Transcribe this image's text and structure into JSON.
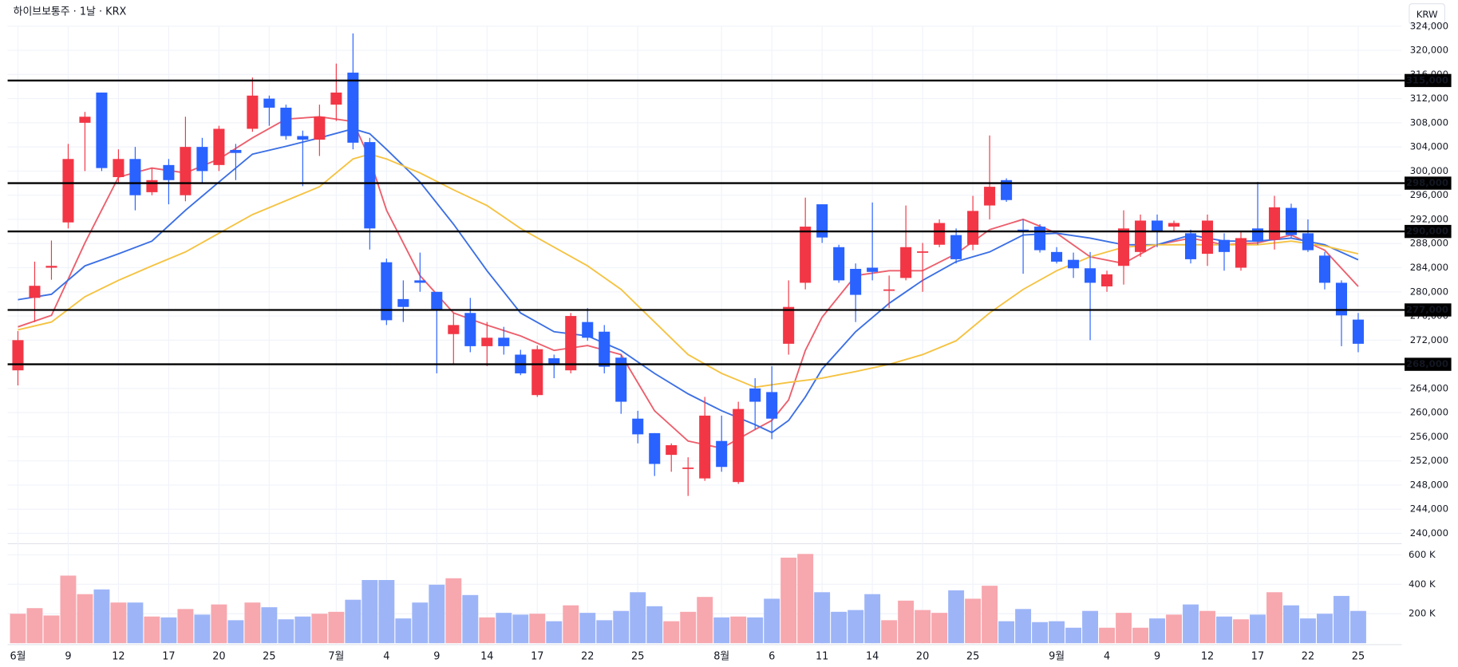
{
  "chart_data": {
    "type": "candlestick",
    "title": "하이브보통주 · 1날 · KRX",
    "currency": "KRW",
    "categories": [
      "6월",
      null,
      null,
      "9",
      null,
      null,
      "12",
      null,
      null,
      "17",
      null,
      null,
      "20",
      null,
      null,
      "25",
      null,
      null,
      null,
      "7월",
      null,
      null,
      "4",
      null,
      null,
      "9",
      null,
      null,
      "14",
      null,
      null,
      "17",
      null,
      null,
      "22",
      null,
      null,
      "25",
      null,
      null,
      null,
      null,
      "8월",
      null,
      null,
      "6",
      null,
      null,
      "11",
      null,
      null,
      "14",
      null,
      null,
      "20",
      null,
      null,
      "25",
      null,
      null,
      null,
      null,
      "9월",
      null,
      null,
      "4",
      null,
      null,
      "9",
      null,
      null,
      "12",
      null,
      null,
      "17",
      null,
      null,
      "22",
      null,
      null,
      "25"
    ],
    "open": [
      267000,
      279000,
      284000,
      291500,
      308000,
      313000,
      299000,
      302000,
      296500,
      301000,
      296000,
      304000,
      301000,
      303500,
      307000,
      312000,
      310500,
      305800,
      305200,
      311000,
      316300,
      304800,
      284900,
      278800,
      281900,
      280000,
      273000,
      276500,
      271000,
      272400,
      269600,
      262900,
      269000,
      267000,
      275000,
      273400,
      269100,
      259000,
      256600,
      253000,
      250700,
      249100,
      255300,
      248500,
      264000,
      263400,
      271400,
      281500,
      294500,
      287400,
      283800,
      284000,
      280200,
      282300,
      286500,
      287800,
      289400,
      287800,
      294300,
      298500,
      290300,
      290800,
      286600,
      285300,
      283900,
      280900,
      284300,
      286600,
      291800,
      290800,
      289700,
      286300,
      288600,
      284000,
      290500,
      288600,
      293900,
      289700,
      286000,
      281500,
      275400
    ],
    "high": [
      273500,
      285000,
      288500,
      304500,
      309800,
      313000,
      303600,
      304000,
      300500,
      302000,
      309000,
      305500,
      307500,
      304500,
      315500,
      312500,
      311000,
      306700,
      311000,
      317800,
      322800,
      305500,
      285500,
      281900,
      286500,
      280000,
      276500,
      279000,
      275000,
      274200,
      270400,
      271100,
      269600,
      276500,
      277300,
      274500,
      269600,
      260300,
      256600,
      254900,
      252600,
      262600,
      259500,
      261800,
      265700,
      267700,
      281900,
      295600,
      294500,
      287800,
      284700,
      294800,
      282700,
      294300,
      288100,
      292000,
      290500,
      295900,
      305900,
      298800,
      292000,
      291200,
      287400,
      286500,
      286600,
      283500,
      293500,
      292800,
      292800,
      291800,
      290300,
      292800,
      289700,
      290000,
      298200,
      295900,
      294600,
      292000,
      286600,
      281900,
      276500
    ],
    "low": [
      264500,
      275000,
      282000,
      290500,
      300000,
      300000,
      298000,
      293500,
      296000,
      294500,
      295000,
      298000,
      300000,
      298500,
      306500,
      307500,
      305200,
      297500,
      302500,
      308300,
      303600,
      287000,
      274500,
      275000,
      280000,
      266500,
      268000,
      270000,
      267700,
      269600,
      266200,
      262600,
      265700,
      266500,
      271900,
      266500,
      259800,
      254900,
      249500,
      250200,
      246200,
      248700,
      250200,
      248200,
      257200,
      255600,
      269600,
      280400,
      288100,
      281500,
      275000,
      281900,
      277300,
      281900,
      280000,
      287400,
      284700,
      286900,
      292000,
      294900,
      283000,
      286500,
      284700,
      282300,
      272000,
      280000,
      281200,
      285800,
      287400,
      290000,
      284700,
      284300,
      283500,
      283500,
      287800,
      287000,
      288900,
      286600,
      280400,
      271000,
      270000
    ],
    "close": [
      272000,
      281000,
      284300,
      302000,
      309000,
      300500,
      302000,
      296000,
      298500,
      298500,
      304000,
      300000,
      307000,
      303000,
      312500,
      310500,
      305800,
      305200,
      309000,
      313000,
      304700,
      290500,
      275300,
      277500,
      281500,
      277000,
      274500,
      271000,
      272400,
      271000,
      266500,
      270500,
      268000,
      276000,
      272400,
      267600,
      261800,
      256400,
      251500,
      254600,
      250900,
      259500,
      251000,
      260600,
      261800,
      259000,
      277500,
      290800,
      289000,
      281900,
      279500,
      283300,
      280400,
      287400,
      286700,
      291400,
      285400,
      293400,
      297400,
      295200,
      290000,
      286900,
      285000,
      283900,
      281500,
      282900,
      290500,
      291800,
      290000,
      291400,
      285400,
      291800,
      286600,
      288900,
      288400,
      294000,
      289400,
      286900,
      281500,
      276100,
      271400
    ],
    "volume": [
      200000,
      238000,
      188000,
      459000,
      333000,
      365000,
      276000,
      276000,
      181000,
      175000,
      232000,
      194000,
      263000,
      156000,
      276000,
      244000,
      162000,
      181000,
      200000,
      213000,
      295000,
      429000,
      429000,
      168000,
      276000,
      397000,
      441000,
      327000,
      175000,
      206000,
      194000,
      200000,
      149000,
      257000,
      206000,
      156000,
      219000,
      346000,
      251000,
      149000,
      213000,
      314000,
      175000,
      181000,
      175000,
      302000,
      581000,
      606000,
      346000,
      213000,
      225000,
      333000,
      156000,
      289000,
      225000,
      206000,
      359000,
      302000,
      390000,
      149000,
      232000,
      143000,
      149000,
      105000,
      219000,
      105000,
      206000,
      105000,
      168000,
      194000,
      263000,
      219000,
      181000,
      162000,
      194000,
      346000,
      257000,
      168000,
      200000,
      321000,
      219000
    ],
    "up_color": "#f23645",
    "down_color": "#2962ff",
    "volume_up_color": "#f7a7ae",
    "volume_down_color": "#9db5f7",
    "moving_averages": [
      {
        "color": "#ec5f6c",
        "x": [
          0,
          2,
          4,
          6,
          8,
          10,
          12,
          14,
          16,
          18,
          20,
          21,
          22,
          24,
          26,
          28,
          30,
          32,
          34,
          36,
          38,
          40,
          42,
          44,
          45,
          46,
          47,
          48,
          50,
          52,
          54,
          56,
          58,
          60,
          62,
          64,
          66,
          68,
          70,
          72,
          74,
          76,
          78,
          80
        ],
        "values": [
          274200,
          276100,
          288100,
          299000,
          300500,
          299700,
          302000,
          305500,
          308600,
          309000,
          308200,
          302000,
          293500,
          282700,
          276500,
          274500,
          272700,
          270300,
          271100,
          269600,
          260300,
          255300,
          254100,
          257200,
          258700,
          262100,
          270300,
          275800,
          282700,
          283500,
          283500,
          286300,
          290300,
          292000,
          289700,
          285800,
          284700,
          287800,
          288900,
          287800,
          288100,
          289400,
          286900,
          280900
        ]
      },
      {
        "color": "#3b6fe4",
        "x": [
          0,
          2,
          4,
          6,
          8,
          10,
          12,
          14,
          16,
          18,
          20,
          21,
          22,
          24,
          26,
          28,
          30,
          32,
          34,
          36,
          38,
          40,
          42,
          44,
          45,
          46,
          47,
          48,
          50,
          52,
          54,
          56,
          58,
          60,
          62,
          64,
          66,
          68,
          70,
          72,
          74,
          76,
          78,
          80
        ],
        "values": [
          278700,
          279600,
          284300,
          286300,
          288400,
          293500,
          298200,
          302800,
          304100,
          305500,
          307000,
          306200,
          303600,
          298200,
          291200,
          283500,
          276500,
          273400,
          272700,
          270300,
          266500,
          263100,
          260300,
          258000,
          256700,
          258700,
          262600,
          267200,
          273400,
          278100,
          281900,
          285000,
          286600,
          289400,
          289700,
          288900,
          287800,
          287800,
          289400,
          288400,
          288400,
          288900,
          287800,
          285300
        ]
      },
      {
        "color": "#f5c342",
        "x": [
          0,
          2,
          4,
          6,
          8,
          10,
          12,
          14,
          16,
          18,
          20,
          21,
          22,
          24,
          26,
          28,
          30,
          32,
          34,
          36,
          38,
          40,
          42,
          44,
          46,
          48,
          50,
          52,
          54,
          56,
          58,
          60,
          62,
          64,
          66,
          68,
          70,
          72,
          74,
          76,
          78,
          80
        ],
        "values": [
          273700,
          275000,
          279200,
          281900,
          284300,
          286600,
          289700,
          292800,
          295100,
          297400,
          302000,
          302800,
          302000,
          299700,
          296900,
          294300,
          290500,
          287400,
          284300,
          280400,
          275000,
          269600,
          266500,
          264200,
          265000,
          265700,
          266800,
          268000,
          269600,
          271900,
          276500,
          280400,
          283500,
          285800,
          287400,
          287800,
          287800,
          287800,
          287800,
          288400,
          287600,
          286300
        ]
      }
    ],
    "levels": [
      {
        "value": 315000,
        "label": "315,000"
      },
      {
        "value": 298000,
        "label": "298,000"
      },
      {
        "value": 290000,
        "label": "290,000"
      },
      {
        "value": 277000,
        "label": "277,000"
      },
      {
        "value": 268000,
        "label": "268,000"
      }
    ],
    "level_color": "#000000",
    "ylim": [
      238600,
      324000
    ],
    "yticks": [
      {
        "value": 240000,
        "label": "240,000"
      },
      {
        "value": 244000,
        "label": "244,000"
      },
      {
        "value": 248000,
        "label": "248,000"
      },
      {
        "value": 252000,
        "label": "252,000"
      },
      {
        "value": 256000,
        "label": "256,000"
      },
      {
        "value": 260000,
        "label": "260,000"
      },
      {
        "value": 264000,
        "label": "264,000"
      },
      {
        "value": 268000,
        "label": "268,000"
      },
      {
        "value": 272000,
        "label": "272,000"
      },
      {
        "value": 276000,
        "label": "276,000"
      },
      {
        "value": 280000,
        "label": "280,000"
      },
      {
        "value": 284000,
        "label": "284,000"
      },
      {
        "value": 288000,
        "label": "288,000"
      },
      {
        "value": 292000,
        "label": "292,000"
      },
      {
        "value": 296000,
        "label": "296,000"
      },
      {
        "value": 300000,
        "label": "300,000"
      },
      {
        "value": 304000,
        "label": "304,000"
      },
      {
        "value": 308000,
        "label": "308,000"
      },
      {
        "value": 312000,
        "label": "312,000"
      },
      {
        "value": 316000,
        "label": "316,000"
      },
      {
        "value": 320000,
        "label": "320,000"
      },
      {
        "value": 324000,
        "label": "324,000"
      }
    ],
    "volume_ylim": [
      0,
      663000
    ],
    "volume_ticks": [
      {
        "value": 200000,
        "label": "200 K"
      },
      {
        "value": 400000,
        "label": "400 K"
      },
      {
        "value": 600000,
        "label": "600 K"
      }
    ],
    "grid": true
  }
}
